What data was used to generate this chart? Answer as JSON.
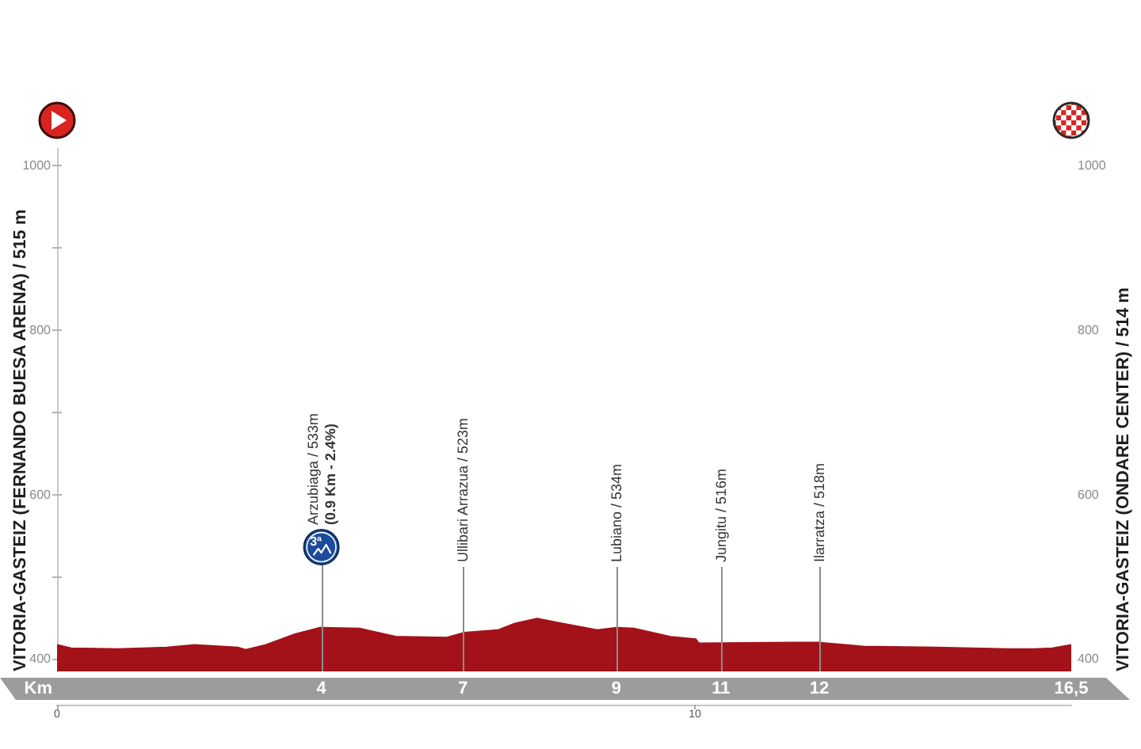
{
  "chart_data": {
    "type": "area",
    "xlabel": "Km",
    "ylabel": "VITORIA-GASTEIZ (ONDARE CENTER) / 514 m",
    "y2label": "VITORIA-GASTEIZ (FERNANDO BUESA ARENA) / 515 m",
    "x": [
      0,
      0.23,
      1.0,
      1.78,
      2.24,
      2.94,
      3.07,
      3.4,
      3.87,
      4.28,
      4.92,
      5.16,
      5.52,
      6.34,
      6.63,
      7.17,
      7.45,
      7.81,
      8.22,
      8.79,
      9.1,
      9.38,
      9.98,
      10.39,
      10.44,
      11.96,
      12.38,
      13.12,
      14.31,
      15.47,
      15.9,
      16.19,
      16.5
    ],
    "values": [
      417,
      413,
      412,
      414,
      417,
      414,
      411,
      417,
      430,
      438,
      437,
      433,
      427,
      426,
      432,
      435,
      443,
      449,
      443,
      435,
      438,
      437,
      427,
      424,
      419,
      420,
      420,
      415,
      414,
      412,
      412,
      413,
      417
    ],
    "color": "#a31218",
    "xlim": [
      0,
      16.5
    ],
    "xticks": [
      {
        "value": 4.3,
        "label": "4"
      },
      {
        "value": 6.6,
        "label": "7"
      },
      {
        "value": 9.1,
        "label": "9"
      },
      {
        "value": 10.8,
        "label": "11"
      },
      {
        "value": 12.4,
        "label": "12"
      },
      {
        "value": 16.5,
        "label": "16,5"
      }
    ],
    "x2lim": [
      0,
      15.9
    ],
    "x2ticks": [
      0,
      10
    ],
    "ylim": [
      385,
      1020
    ],
    "yticks": [
      400,
      {
        "value": 500,
        "label": null
      },
      600,
      {
        "value": 700,
        "label": null
      },
      800,
      {
        "value": 900,
        "label": null
      },
      1000
    ],
    "y2lim": [
      385,
      1020
    ],
    "y2ticks": [
      400,
      {
        "value": 500,
        "label": null
      },
      600,
      {
        "value": 700,
        "label": null
      },
      800,
      {
        "value": 900,
        "label": null
      },
      1000
    ],
    "ref_lines": [
      {
        "axis": "x",
        "value": 4.3,
        "label": "Arzubiaga / 533m\n(0.9 Km - 2.4%)",
        "color": "#8c8c8c"
      },
      {
        "axis": "x",
        "value": 6.6,
        "label": "Ullibari Arrazua / 523m",
        "color": "#8c8c8c"
      },
      {
        "axis": "x",
        "value": 9.1,
        "label": "Lubiano / 534m",
        "color": "#8c8c8c"
      },
      {
        "axis": "x",
        "value": 10.8,
        "label": "Jungitu / 516m",
        "color": "#8c8c8c"
      },
      {
        "axis": "x",
        "value": 12.4,
        "label": "Ilarratza / 518m",
        "color": "#8c8c8c"
      }
    ],
    "annotations": [
      {
        "text": "3ª",
        "x": 4.3,
        "y": 536
      }
    ]
  }
}
